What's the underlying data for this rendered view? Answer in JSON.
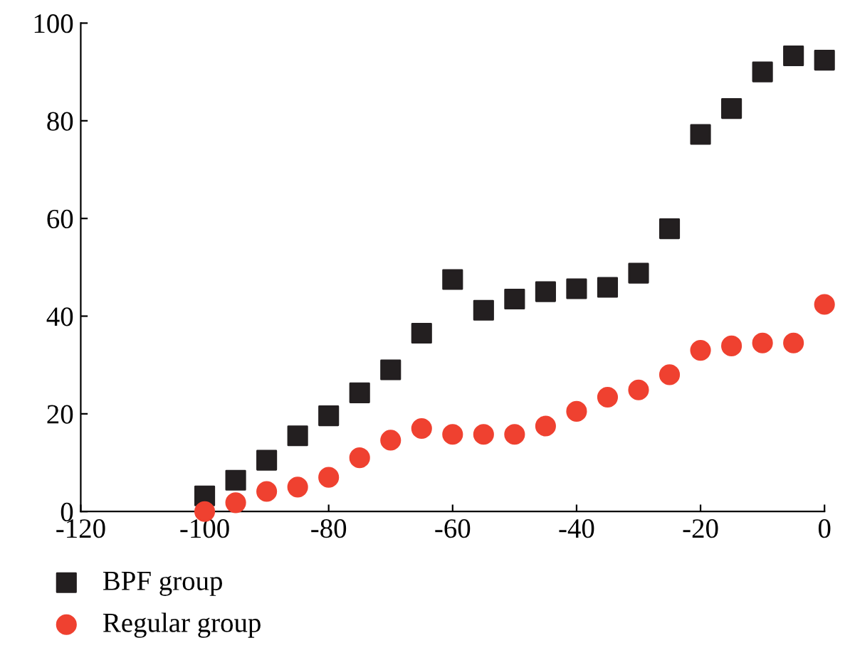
{
  "chart_data": {
    "type": "scatter",
    "x": [
      -100,
      -95,
      -90,
      -85,
      -80,
      -75,
      -70,
      -65,
      -60,
      -55,
      -50,
      -45,
      -40,
      -35,
      -30,
      -25,
      -20,
      -15,
      -10,
      -5,
      0
    ],
    "series": [
      {
        "name": "BPF group",
        "color": "#231f20",
        "marker": "square",
        "values": [
          3.2,
          6.4,
          10.5,
          15.5,
          19.6,
          24.3,
          29,
          36.5,
          47.5,
          41.2,
          43.5,
          45,
          45.6,
          45.9,
          48.8,
          57.9,
          77.2,
          82.5,
          90,
          93.3,
          92.4
        ]
      },
      {
        "name": "Regular group",
        "color": "#ef4130",
        "marker": "circle",
        "values": [
          0,
          1.8,
          4.1,
          5,
          7,
          11,
          14.6,
          17,
          15.8,
          15.8,
          15.8,
          17.5,
          20.5,
          23.4,
          24.9,
          28,
          33,
          33.9,
          34.5,
          34.5,
          42.4
        ]
      }
    ],
    "xlim": [
      -120,
      0
    ],
    "xticks": [
      -120,
      -100,
      -80,
      -60,
      -40,
      -20,
      0
    ],
    "ylim": [
      0,
      100
    ],
    "yticks": [
      0,
      20,
      40,
      60,
      80,
      100
    ],
    "grid": false,
    "legend": "bottom left"
  }
}
